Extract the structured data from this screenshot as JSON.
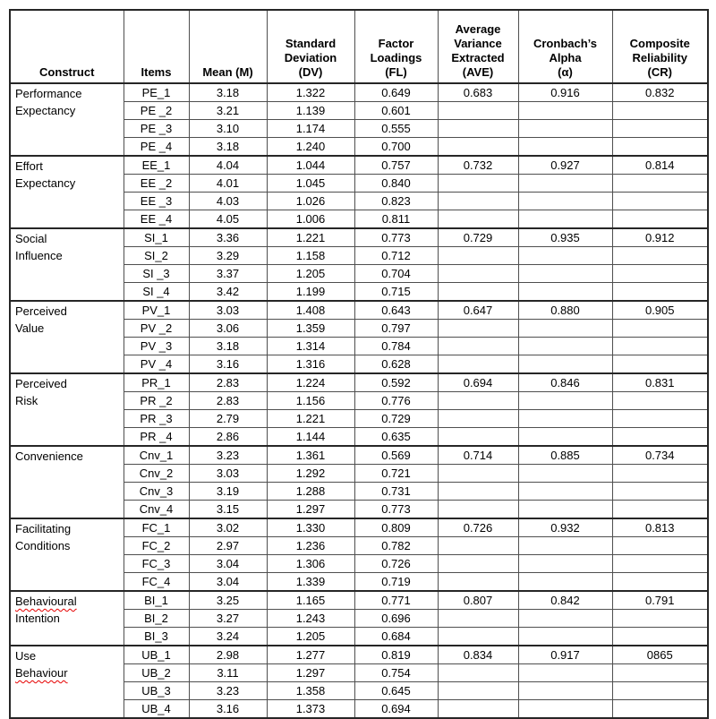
{
  "table": {
    "border_color_heavy": "#262626",
    "border_color_light": "#4f4f4f",
    "squiggle_color": "#e60000",
    "columns": [
      {
        "key": "construct",
        "header_lines": [
          "Construct"
        ]
      },
      {
        "key": "items",
        "header_lines": [
          "Items"
        ]
      },
      {
        "key": "mean",
        "header_lines": [
          "Mean (M)"
        ]
      },
      {
        "key": "sd",
        "header_lines": [
          "Standard",
          "Deviation",
          "(DV)"
        ]
      },
      {
        "key": "fl",
        "header_lines": [
          "Factor",
          "Loadings",
          "(FL)"
        ]
      },
      {
        "key": "ave",
        "header_lines": [
          "Average",
          "Variance",
          "Extracted",
          "(AVE)"
        ]
      },
      {
        "key": "alpha",
        "header_lines": [
          "Cronbach’s",
          "Alpha",
          "(α)"
        ]
      },
      {
        "key": "cr",
        "header_lines": [
          "Composite",
          "Reliability",
          "(CR)"
        ]
      }
    ],
    "groups": [
      {
        "construct": [
          {
            "text": "Performance",
            "squiggle": false
          },
          {
            "text": "Expectancy",
            "squiggle": false
          }
        ],
        "rows": [
          {
            "item": "PE_1",
            "mean": "3.18",
            "sd": "1.322",
            "fl": "0.649",
            "ave": "0.683",
            "alpha": "0.916",
            "cr": "0.832"
          },
          {
            "item": "PE _2",
            "mean": "3.21",
            "sd": "1.139",
            "fl": "0.601",
            "ave": "",
            "alpha": "",
            "cr": ""
          },
          {
            "item": "PE _3",
            "mean": "3.10",
            "sd": "1.174",
            "fl": "0.555",
            "ave": "",
            "alpha": "",
            "cr": ""
          },
          {
            "item": "PE _4",
            "mean": "3.18",
            "sd": "1.240",
            "fl": "0.700",
            "ave": "",
            "alpha": "",
            "cr": ""
          }
        ]
      },
      {
        "construct": [
          {
            "text": "Effort",
            "squiggle": false
          },
          {
            "text": "Expectancy",
            "squiggle": false
          }
        ],
        "rows": [
          {
            "item": "EE_1",
            "mean": "4.04",
            "sd": "1.044",
            "fl": "0.757",
            "ave": "0.732",
            "alpha": "0.927",
            "cr": "0.814"
          },
          {
            "item": "EE _2",
            "mean": "4.01",
            "sd": "1.045",
            "fl": "0.840",
            "ave": "",
            "alpha": "",
            "cr": ""
          },
          {
            "item": "EE _3",
            "mean": "4.03",
            "sd": "1.026",
            "fl": "0.823",
            "ave": "",
            "alpha": "",
            "cr": ""
          },
          {
            "item": "EE _4",
            "mean": "4.05",
            "sd": "1.006",
            "fl": "0.811",
            "ave": "",
            "alpha": "",
            "cr": ""
          }
        ]
      },
      {
        "construct": [
          {
            "text": "Social",
            "squiggle": false
          },
          {
            "text": "Influence",
            "squiggle": false
          }
        ],
        "rows": [
          {
            "item": "SI_1",
            "mean": "3.36",
            "sd": "1.221",
            "fl": "0.773",
            "ave": "0.729",
            "alpha": "0.935",
            "cr": "0.912"
          },
          {
            "item": "SI_2",
            "mean": "3.29",
            "sd": "1.158",
            "fl": "0.712",
            "ave": "",
            "alpha": "",
            "cr": ""
          },
          {
            "item": "SI _3",
            "mean": "3.37",
            "sd": "1.205",
            "fl": "0.704",
            "ave": "",
            "alpha": "",
            "cr": ""
          },
          {
            "item": "SI _4",
            "mean": "3.42",
            "sd": "1.199",
            "fl": "0.715",
            "ave": "",
            "alpha": "",
            "cr": ""
          }
        ]
      },
      {
        "construct": [
          {
            "text": "Perceived",
            "squiggle": false
          },
          {
            "text": "Value",
            "squiggle": false
          }
        ],
        "rows": [
          {
            "item": "PV_1",
            "mean": "3.03",
            "sd": "1.408",
            "fl": "0.643",
            "ave": "0.647",
            "alpha": "0.880",
            "cr": "0.905"
          },
          {
            "item": "PV _2",
            "mean": "3.06",
            "sd": "1.359",
            "fl": "0.797",
            "ave": "",
            "alpha": "",
            "cr": ""
          },
          {
            "item": "PV _3",
            "mean": "3.18",
            "sd": "1.314",
            "fl": "0.784",
            "ave": "",
            "alpha": "",
            "cr": ""
          },
          {
            "item": "PV _4",
            "mean": "3.16",
            "sd": "1.316",
            "fl": "0.628",
            "ave": "",
            "alpha": "",
            "cr": ""
          }
        ]
      },
      {
        "construct": [
          {
            "text": "Perceived",
            "squiggle": false
          },
          {
            "text": "Risk",
            "squiggle": false
          }
        ],
        "rows": [
          {
            "item": "PR_1",
            "mean": "2.83",
            "sd": "1.224",
            "fl": "0.592",
            "ave": "0.694",
            "alpha": "0.846",
            "cr": "0.831"
          },
          {
            "item": "PR _2",
            "mean": "2.83",
            "sd": "1.156",
            "fl": "0.776",
            "ave": "",
            "alpha": "",
            "cr": ""
          },
          {
            "item": "PR _3",
            "mean": "2.79",
            "sd": "1.221",
            "fl": "0.729",
            "ave": "",
            "alpha": "",
            "cr": ""
          },
          {
            "item": "PR _4",
            "mean": "2.86",
            "sd": "1.144",
            "fl": "0.635",
            "ave": "",
            "alpha": "",
            "cr": ""
          }
        ]
      },
      {
        "construct": [
          {
            "text": "Convenience",
            "squiggle": false
          }
        ],
        "rows": [
          {
            "item": "Cnv_1",
            "mean": "3.23",
            "sd": "1.361",
            "fl": "0.569",
            "ave": "0.714",
            "alpha": "0.885",
            "cr": "0.734"
          },
          {
            "item": "Cnv_2",
            "mean": "3.03",
            "sd": "1.292",
            "fl": "0.721",
            "ave": "",
            "alpha": "",
            "cr": ""
          },
          {
            "item": "Cnv_3",
            "mean": "3.19",
            "sd": "1.288",
            "fl": "0.731",
            "ave": "",
            "alpha": "",
            "cr": ""
          },
          {
            "item": "Cnv_4",
            "mean": "3.15",
            "sd": "1.297",
            "fl": "0.773",
            "ave": "",
            "alpha": "",
            "cr": ""
          }
        ]
      },
      {
        "construct": [
          {
            "text": "Facilitating",
            "squiggle": false
          },
          {
            "text": "Conditions",
            "squiggle": false
          }
        ],
        "rows": [
          {
            "item": "FC_1",
            "mean": "3.02",
            "sd": "1.330",
            "fl": "0.809",
            "ave": "0.726",
            "alpha": "0.932",
            "cr": "0.813"
          },
          {
            "item": "FC_2",
            "mean": "2.97",
            "sd": "1.236",
            "fl": "0.782",
            "ave": "",
            "alpha": "",
            "cr": ""
          },
          {
            "item": "FC_3",
            "mean": "3.04",
            "sd": "1.306",
            "fl": "0.726",
            "ave": "",
            "alpha": "",
            "cr": ""
          },
          {
            "item": "FC_4",
            "mean": "3.04",
            "sd": "1.339",
            "fl": "0.719",
            "ave": "",
            "alpha": "",
            "cr": ""
          }
        ]
      },
      {
        "construct": [
          {
            "text": "Behavioural",
            "squiggle": true
          },
          {
            "text": "Intention",
            "squiggle": false
          }
        ],
        "rows": [
          {
            "item": "BI_1",
            "mean": "3.25",
            "sd": "1.165",
            "fl": "0.771",
            "ave": "0.807",
            "alpha": "0.842",
            "cr": "0.791"
          },
          {
            "item": "BI_2",
            "mean": "3.27",
            "sd": "1.243",
            "fl": "0.696",
            "ave": "",
            "alpha": "",
            "cr": ""
          },
          {
            "item": "BI_3",
            "mean": "3.24",
            "sd": "1.205",
            "fl": "0.684",
            "ave": "",
            "alpha": "",
            "cr": ""
          }
        ]
      },
      {
        "construct": [
          {
            "text": "Use",
            "squiggle": false
          },
          {
            "text": "Behaviour",
            "squiggle": true
          }
        ],
        "rows": [
          {
            "item": "UB_1",
            "mean": "2.98",
            "sd": "1.277",
            "fl": "0.819",
            "ave": "0.834",
            "alpha": "0.917",
            "cr": "0865"
          },
          {
            "item": "UB_2",
            "mean": "3.11",
            "sd": "1.297",
            "fl": "0.754",
            "ave": "",
            "alpha": "",
            "cr": ""
          },
          {
            "item": "UB_3",
            "mean": "3.23",
            "sd": "1.358",
            "fl": "0.645",
            "ave": "",
            "alpha": "",
            "cr": ""
          },
          {
            "item": "UB_4",
            "mean": "3.16",
            "sd": "1.373",
            "fl": "0.694",
            "ave": "",
            "alpha": "",
            "cr": ""
          }
        ]
      }
    ]
  }
}
